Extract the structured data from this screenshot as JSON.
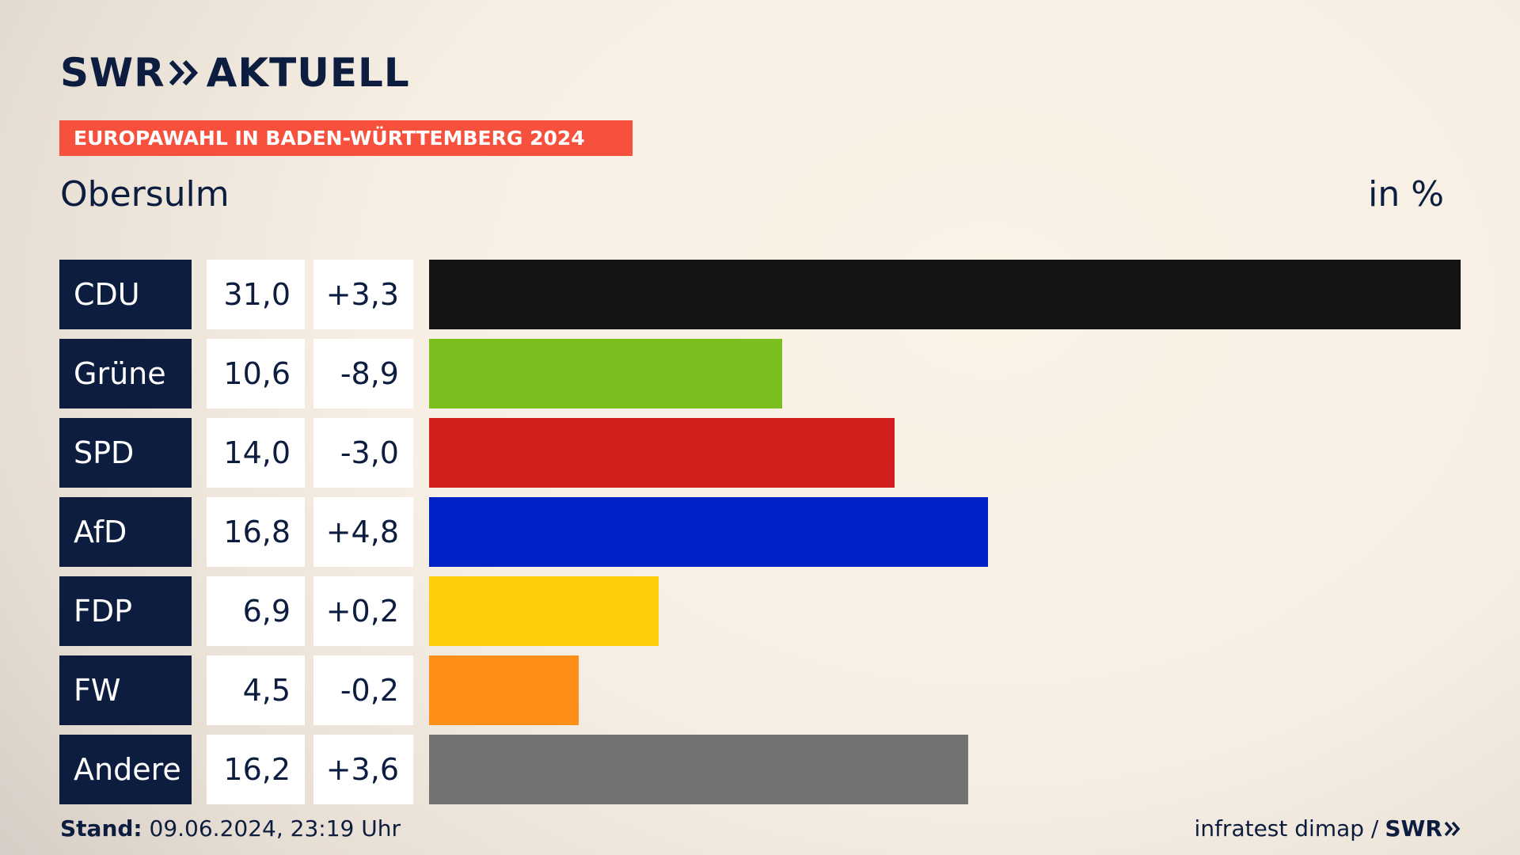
{
  "header": {
    "logo_part1": "SWR",
    "logo_part2": "AKTUELL",
    "tag": "EUROPAWAHL IN BADEN-WÜRTTEMBERG 2024",
    "place": "Obersulm",
    "unit": "in %"
  },
  "chart_data": {
    "type": "bar",
    "orientation": "horizontal",
    "title": "Obersulm",
    "unit": "in %",
    "categories": [
      "CDU",
      "Grüne",
      "SPD",
      "AfD",
      "FDP",
      "FW",
      "Andere"
    ],
    "values": [
      31.0,
      10.6,
      14.0,
      16.8,
      6.9,
      4.5,
      16.2
    ],
    "value_labels": [
      "31,0",
      "10,6",
      "14,0",
      "16,8",
      "6,9",
      "4,5",
      "16,2"
    ],
    "changes": [
      3.3,
      -8.9,
      -3.0,
      4.8,
      0.2,
      -0.2,
      3.6
    ],
    "change_labels": [
      "+3,3",
      "-8,9",
      "-3,0",
      "+4,8",
      "+0,2",
      "-0,2",
      "+3,6"
    ],
    "colors": [
      "#141414",
      "#7abf1d",
      "#d41f1f",
      "#0020c8",
      "#ffcd0a",
      "#fd8e18",
      "#727272"
    ],
    "xlim": [
      0,
      31.0
    ],
    "grid": false,
    "legend": "none"
  },
  "footer": {
    "stand_label": "Stand:",
    "stand_value": " 09.06.2024, 23:19 Uhr",
    "source": "infratest dimap /",
    "source_logo": "SWR"
  }
}
